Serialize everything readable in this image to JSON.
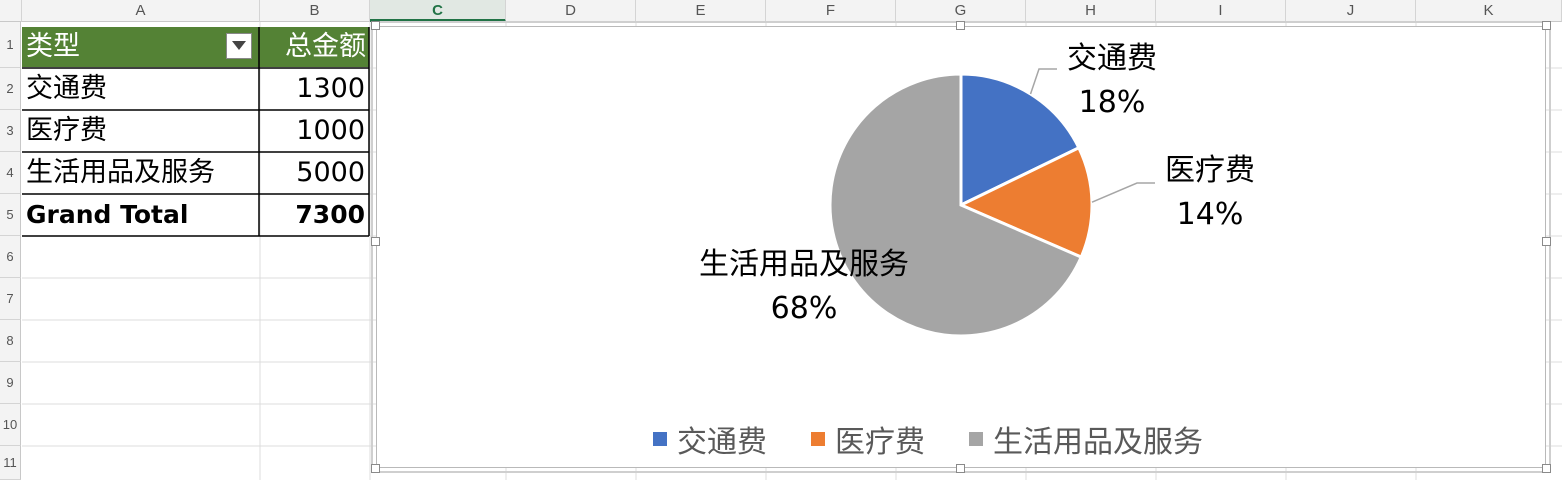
{
  "columns": [
    "A",
    "B",
    "C",
    "D",
    "E",
    "F",
    "G",
    "H",
    "I",
    "J",
    "K"
  ],
  "selected_column": "C",
  "rows": [
    "1",
    "2",
    "3",
    "4",
    "5",
    "6",
    "7",
    "8",
    "9",
    "10",
    "11"
  ],
  "table": {
    "header": {
      "type": "类型",
      "amount": "总金额"
    },
    "rows": [
      {
        "type": "交通费",
        "amount": "1300"
      },
      {
        "type": "医疗费",
        "amount": "1000"
      },
      {
        "type": "生活用品及服务",
        "amount": "5000"
      }
    ],
    "total": {
      "label": "Grand Total",
      "amount": "7300"
    }
  },
  "icons": {
    "filter": "dropdown-filter-icon"
  },
  "chart_data": {
    "type": "pie",
    "categories": [
      "交通费",
      "医疗费",
      "生活用品及服务"
    ],
    "values": [
      1300,
      1000,
      5000
    ],
    "percent_labels": [
      "18%",
      "14%",
      "68%"
    ],
    "colors": [
      "#4472c4",
      "#ed7d31",
      "#a5a5a5"
    ],
    "legend_position": "bottom",
    "title": ""
  }
}
